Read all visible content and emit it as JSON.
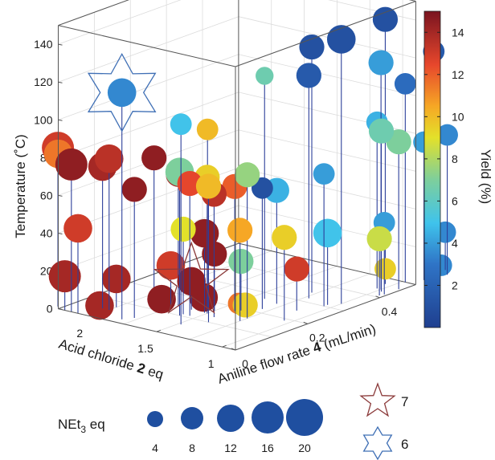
{
  "chart_data": {
    "type": "scatter",
    "projection": "3d",
    "axes": {
      "x": {
        "label_parts": [
          "Aniline flow rate ",
          "4",
          " (mL/min)"
        ],
        "ticks": [
          "0",
          "0.2",
          "0.4"
        ],
        "range": [
          0,
          0.5
        ]
      },
      "y": {
        "label_parts": [
          "Acid chloride ",
          "2",
          " eq"
        ],
        "ticks": [
          "1",
          "1.5",
          "2"
        ],
        "range": [
          0.9,
          2.25
        ]
      },
      "z": {
        "label": "Temperature (˚C)",
        "ticks": [
          "0",
          "20",
          "40",
          "60",
          "80",
          "100",
          "120",
          "140"
        ],
        "range": [
          0,
          150
        ]
      }
    },
    "colorbar": {
      "label": "Yield (%)",
      "ticks": [
        "2",
        "4",
        "6",
        "8",
        "10",
        "12",
        "14"
      ],
      "range": [
        0,
        15
      ]
    },
    "size_legend": {
      "label": "NEt",
      "label_sub": "3",
      "label_suffix": " eq",
      "values": [
        "4",
        "8",
        "12",
        "16",
        "20"
      ]
    },
    "markers_legend": [
      {
        "symbol": "star-5",
        "label": "7",
        "color": "#8b3a3a"
      },
      {
        "symbol": "star-6",
        "label": "6",
        "color": "#3f6fb5"
      }
    ],
    "series_dims": [
      "flow_rate",
      "acid_chloride_eq",
      "temperature",
      "yield",
      "net3_eq"
    ],
    "points": [
      [
        0.33,
        1.0,
        140,
        1.0,
        16
      ],
      [
        0.47,
        1.05,
        140,
        1.0,
        12
      ],
      [
        0.35,
        1.28,
        130,
        1.0,
        12
      ],
      [
        0.44,
        1.0,
        120,
        4.0,
        12
      ],
      [
        0.55,
        0.9,
        120,
        1.5,
        8
      ],
      [
        0.32,
        1.22,
        118,
        1.5,
        12
      ],
      [
        0.27,
        1.42,
        118,
        6.5,
        4
      ],
      [
        0.02,
        1.82,
        120,
        3.5,
        16
      ],
      [
        0.06,
        1.48,
        106,
        5.0,
        8
      ],
      [
        0.5,
        0.98,
        105,
        2.5,
        8
      ],
      [
        0.17,
        1.58,
        94,
        10.0,
        8
      ],
      [
        0.44,
        1.03,
        88,
        4.5,
        8
      ],
      [
        0.01,
        2.28,
        84,
        13.0,
        20
      ],
      [
        0.0,
        2.25,
        82,
        11.5,
        16
      ],
      [
        0.05,
        2.0,
        80,
        13.5,
        16
      ],
      [
        0.12,
        1.85,
        78,
        14.5,
        12
      ],
      [
        0.1,
        1.6,
        76,
        7.0,
        16
      ],
      [
        0.14,
        1.5,
        72,
        9.5,
        12
      ],
      [
        0.16,
        1.25,
        76,
        7.5,
        12
      ],
      [
        0.1,
        1.38,
        72,
        10.0,
        12
      ],
      [
        0.0,
        2.15,
        78,
        14.5,
        20
      ],
      [
        0.05,
        2.05,
        75,
        14.0,
        16
      ],
      [
        0.11,
        1.55,
        70,
        12.5,
        12
      ],
      [
        0.14,
        1.72,
        70,
        14.0,
        12
      ],
      [
        0.04,
        1.78,
        68,
        14.5,
        12
      ],
      [
        0.18,
        1.4,
        66,
        12.0,
        12
      ],
      [
        0.13,
        1.42,
        65,
        13.5,
        12
      ],
      [
        0.22,
        1.3,
        64,
        1.0,
        8
      ],
      [
        0.3,
        1.05,
        70,
        4.0,
        8
      ],
      [
        0.43,
        0.97,
        85,
        6.5,
        12
      ],
      [
        0.46,
        0.92,
        78,
        7.0,
        12
      ],
      [
        0.53,
        0.92,
        73,
        4.0,
        8
      ],
      [
        0.58,
        0.88,
        74,
        3.5,
        8
      ],
      [
        0.26,
        1.3,
        60,
        4.5,
        12
      ],
      [
        0.14,
        1.25,
        48,
        10.5,
        12
      ],
      [
        0.19,
        1.05,
        44,
        9.5,
        12
      ],
      [
        0.0,
        2.1,
        45,
        13.0,
        16
      ],
      [
        0.11,
        1.6,
        45,
        9.0,
        12
      ],
      [
        0.14,
        1.52,
        42,
        14.5,
        16
      ],
      [
        0.31,
        1.05,
        38,
        5.0,
        16
      ],
      [
        0.42,
        0.92,
        38,
        4.0,
        8
      ],
      [
        0.41,
        0.93,
        30,
        8.5,
        12
      ],
      [
        0.16,
        1.5,
        30,
        14.5,
        12
      ],
      [
        0.19,
        1.38,
        26,
        7.0,
        12
      ],
      [
        0.13,
        1.75,
        22,
        13.0,
        16
      ],
      [
        0.14,
        1.62,
        15,
        14.5,
        16
      ],
      [
        0.25,
        1.12,
        22,
        13.0,
        12
      ],
      [
        0.0,
        2.2,
        18,
        14.0,
        20
      ],
      [
        0.07,
        2.0,
        15,
        14.0,
        16
      ],
      [
        0.06,
        2.1,
        0,
        14.0,
        16
      ],
      [
        0.13,
        1.82,
        3,
        14.5,
        16
      ],
      [
        0.21,
        1.72,
        0,
        14.5,
        16
      ],
      [
        0.22,
        1.48,
        0,
        11.5,
        8
      ],
      [
        0.22,
        1.43,
        0,
        9.5,
        12
      ],
      [
        0.47,
        1.05,
        8,
        9.5,
        8
      ],
      [
        0.6,
        0.95,
        20,
        3.5,
        8
      ],
      [
        0.6,
        0.98,
        2,
        3.5,
        8
      ]
    ],
    "highlight_points": [
      {
        "marker": "6",
        "point": [
          0.02,
          1.82,
          120,
          3.5,
          16
        ]
      },
      {
        "marker": "7",
        "point": [
          0.14,
          1.62,
          15,
          14.5,
          16
        ]
      }
    ]
  }
}
